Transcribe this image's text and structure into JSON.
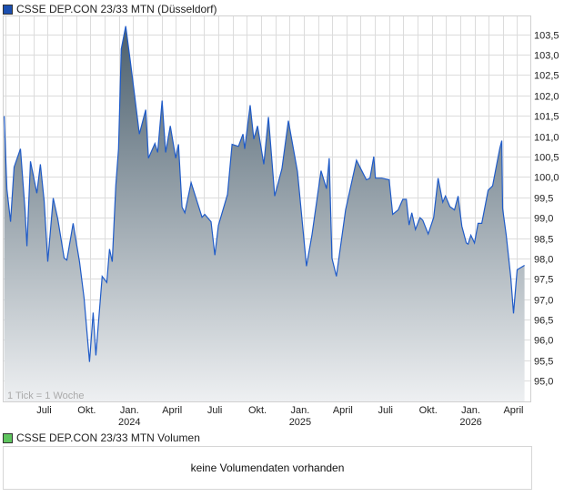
{
  "chart_data": {
    "type": "area",
    "title": "CSSE DEP.CON 23/33 MTN (Düsseldorf)",
    "series_name": "CSSE DEP.CON 23/33 MTN (Düsseldorf)",
    "xlabel": "",
    "ylabel": "",
    "x_unit": "decimal year",
    "xlim": [
      2023.239,
      2026.33
    ],
    "ylim": [
      94.48,
      103.95
    ],
    "grid": true,
    "y_ticks": [
      95.0,
      95.5,
      96.0,
      96.5,
      97.0,
      97.5,
      98.0,
      98.5,
      99.0,
      99.5,
      100.0,
      100.5,
      101.0,
      101.5,
      102.0,
      102.5,
      103.0,
      103.5
    ],
    "y_tick_labels": [
      "95,0",
      "95,5",
      "96,0",
      "96,5",
      "97,0",
      "97,5",
      "98,0",
      "98,5",
      "99,0",
      "99,5",
      "100,0",
      "100,5",
      "101,0",
      "101,5",
      "102,0",
      "102,5",
      "103,0",
      "103,5"
    ],
    "x_ticks": [
      {
        "value": 2023.5,
        "label": "Juli",
        "year": ""
      },
      {
        "value": 2023.75,
        "label": "Okt.",
        "year": ""
      },
      {
        "value": 2024.0,
        "label": "Jan.",
        "year": "2024"
      },
      {
        "value": 2024.25,
        "label": "April",
        "year": ""
      },
      {
        "value": 2024.5,
        "label": "Juli",
        "year": ""
      },
      {
        "value": 2024.75,
        "label": "Okt.",
        "year": ""
      },
      {
        "value": 2025.0,
        "label": "Jan.",
        "year": "2025"
      },
      {
        "value": 2025.25,
        "label": "April",
        "year": ""
      },
      {
        "value": 2025.5,
        "label": "Juli",
        "year": ""
      },
      {
        "value": 2025.75,
        "label": "Okt.",
        "year": ""
      },
      {
        "value": 2026.0,
        "label": "Jan.",
        "year": "2026"
      },
      {
        "value": 2026.25,
        "label": "April",
        "year": ""
      }
    ],
    "x": [
      2023.245,
      2023.261,
      2023.282,
      2023.303,
      2023.34,
      2023.367,
      2023.378,
      2023.399,
      2023.436,
      2023.457,
      2023.479,
      2023.5,
      2023.532,
      2023.559,
      2023.596,
      2023.612,
      2023.649,
      2023.686,
      2023.713,
      2023.745,
      2023.766,
      2023.782,
      2023.819,
      2023.846,
      2023.862,
      2023.878,
      2023.899,
      2023.915,
      2023.931,
      2023.957,
      2023.984,
      2024.005,
      2024.037,
      2024.074,
      2024.09,
      2024.128,
      2024.144,
      2024.17,
      2024.191,
      2024.218,
      2024.25,
      2024.266,
      2024.287,
      2024.303,
      2024.34,
      2024.404,
      2024.42,
      2024.457,
      2024.479,
      2024.5,
      2024.553,
      2024.58,
      2024.617,
      2024.644,
      2024.654,
      2024.686,
      2024.707,
      2024.729,
      2024.766,
      2024.793,
      2024.83,
      2024.872,
      2024.91,
      2024.963,
      2025.016,
      2025.048,
      2025.101,
      2025.133,
      2025.149,
      2025.165,
      2025.191,
      2025.245,
      2025.282,
      2025.309,
      2025.335,
      2025.367,
      2025.388,
      2025.41,
      2025.42,
      2025.457,
      2025.5,
      2025.521,
      2025.553,
      2025.58,
      2025.601,
      2025.617,
      2025.633,
      2025.654,
      2025.681,
      2025.697,
      2025.729,
      2025.761,
      2025.787,
      2025.814,
      2025.83,
      2025.856,
      2025.883,
      2025.904,
      2025.926,
      2025.952,
      2025.963,
      2025.979,
      2026.0,
      2026.021,
      2026.043,
      2026.08,
      2026.106,
      2026.128,
      2026.149,
      2026.16,
      2026.165,
      2026.186,
      2026.213,
      2026.229,
      2026.25,
      2026.293
    ],
    "values": [
      101.49,
      99.7,
      98.9,
      100.24,
      100.69,
      99.19,
      98.3,
      100.38,
      99.6,
      100.31,
      99.42,
      97.92,
      99.48,
      98.97,
      98.01,
      97.96,
      98.86,
      97.92,
      97.03,
      95.46,
      96.67,
      95.62,
      97.56,
      97.41,
      98.23,
      97.92,
      99.79,
      100.69,
      103.14,
      103.7,
      102.83,
      102.14,
      101.05,
      101.65,
      100.46,
      100.82,
      100.6,
      101.87,
      100.6,
      101.25,
      100.46,
      100.8,
      99.26,
      99.12,
      99.86,
      99.01,
      99.08,
      98.9,
      98.08,
      98.81,
      99.57,
      100.8,
      100.75,
      101.05,
      100.69,
      101.76,
      100.93,
      101.25,
      100.31,
      101.47,
      99.53,
      100.2,
      101.38,
      100.13,
      97.81,
      98.57,
      100.15,
      99.71,
      100.46,
      98.01,
      97.56,
      99.19,
      99.9,
      100.41,
      100.19,
      99.93,
      99.97,
      100.5,
      99.97,
      99.97,
      99.93,
      99.08,
      99.19,
      99.45,
      99.45,
      98.82,
      99.12,
      98.71,
      99.0,
      98.94,
      98.6,
      99.0,
      99.97,
      99.38,
      99.53,
      99.27,
      99.19,
      99.53,
      98.79,
      98.38,
      98.35,
      98.57,
      98.38,
      98.86,
      98.86,
      99.67,
      99.78,
      100.26,
      100.71,
      100.89,
      99.23,
      98.57,
      97.53,
      96.65,
      97.72,
      97.83
    ],
    "annotation": "1 Tick = 1 Woche",
    "colors": {
      "line": "#1f5bc8",
      "fill_top": "#4b5f6d",
      "fill_bottom": "#eef0f2",
      "legend_price": "#1b4fb0",
      "legend_volume": "#5ec45e"
    }
  },
  "volume": {
    "legend": "CSSE DEP.CON 23/33 MTN Volumen",
    "message": "keine Volumendaten vorhanden"
  }
}
